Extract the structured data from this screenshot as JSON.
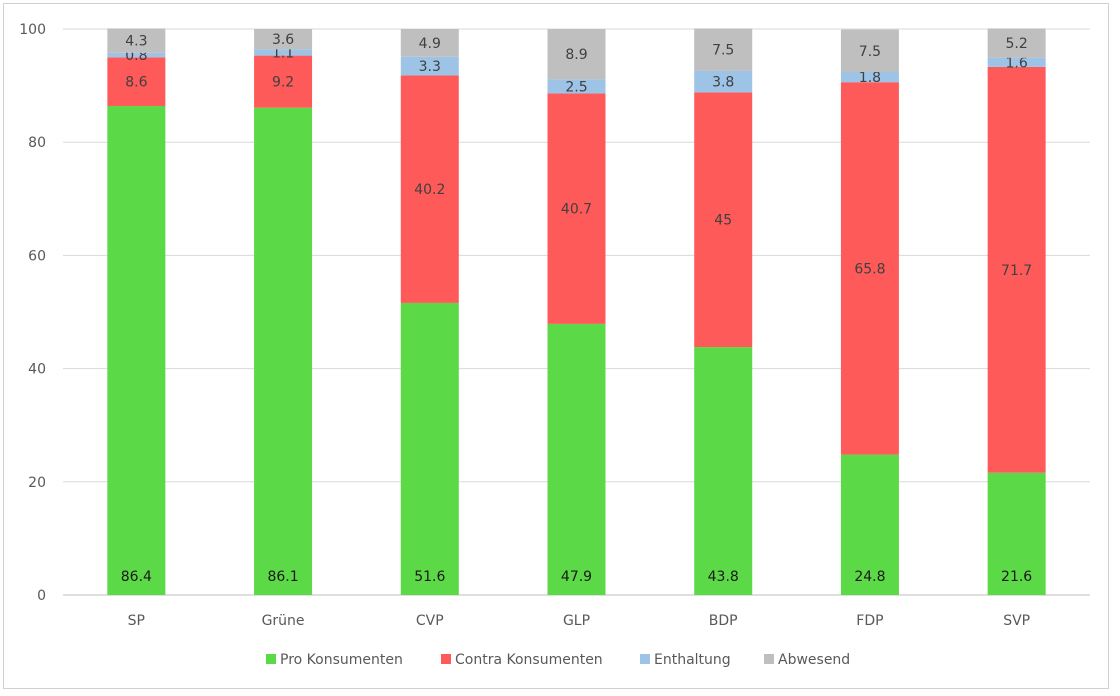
{
  "chart_data": {
    "type": "bar",
    "stacked": true,
    "categories": [
      "SP",
      "Grüne",
      "CVP",
      "GLP",
      "BDP",
      "FDP",
      "SVP"
    ],
    "series": [
      {
        "name": "Pro Konsumenten",
        "color": "#5cd946",
        "values": [
          86.4,
          86.1,
          51.6,
          47.9,
          43.8,
          24.8,
          21.6
        ]
      },
      {
        "name": "Contra Konsumenten",
        "color": "#ff5a5a",
        "values": [
          8.6,
          9.2,
          40.2,
          40.7,
          45.0,
          65.8,
          71.7
        ]
      },
      {
        "name": "Enthaltung",
        "color": "#9dc3e6",
        "values": [
          0.8,
          1.1,
          3.3,
          2.5,
          3.8,
          1.8,
          1.6
        ]
      },
      {
        "name": "Abwesend",
        "color": "#bfbfbf",
        "values": [
          4.3,
          3.6,
          4.9,
          8.9,
          7.5,
          7.5,
          5.2
        ]
      }
    ],
    "ylim": [
      0,
      100
    ],
    "yticks": [
      "0",
      "20",
      "40",
      "60",
      "80",
      "100"
    ],
    "grid": true,
    "legend": "bottom",
    "title": "",
    "xlabel": "",
    "ylabel": ""
  }
}
